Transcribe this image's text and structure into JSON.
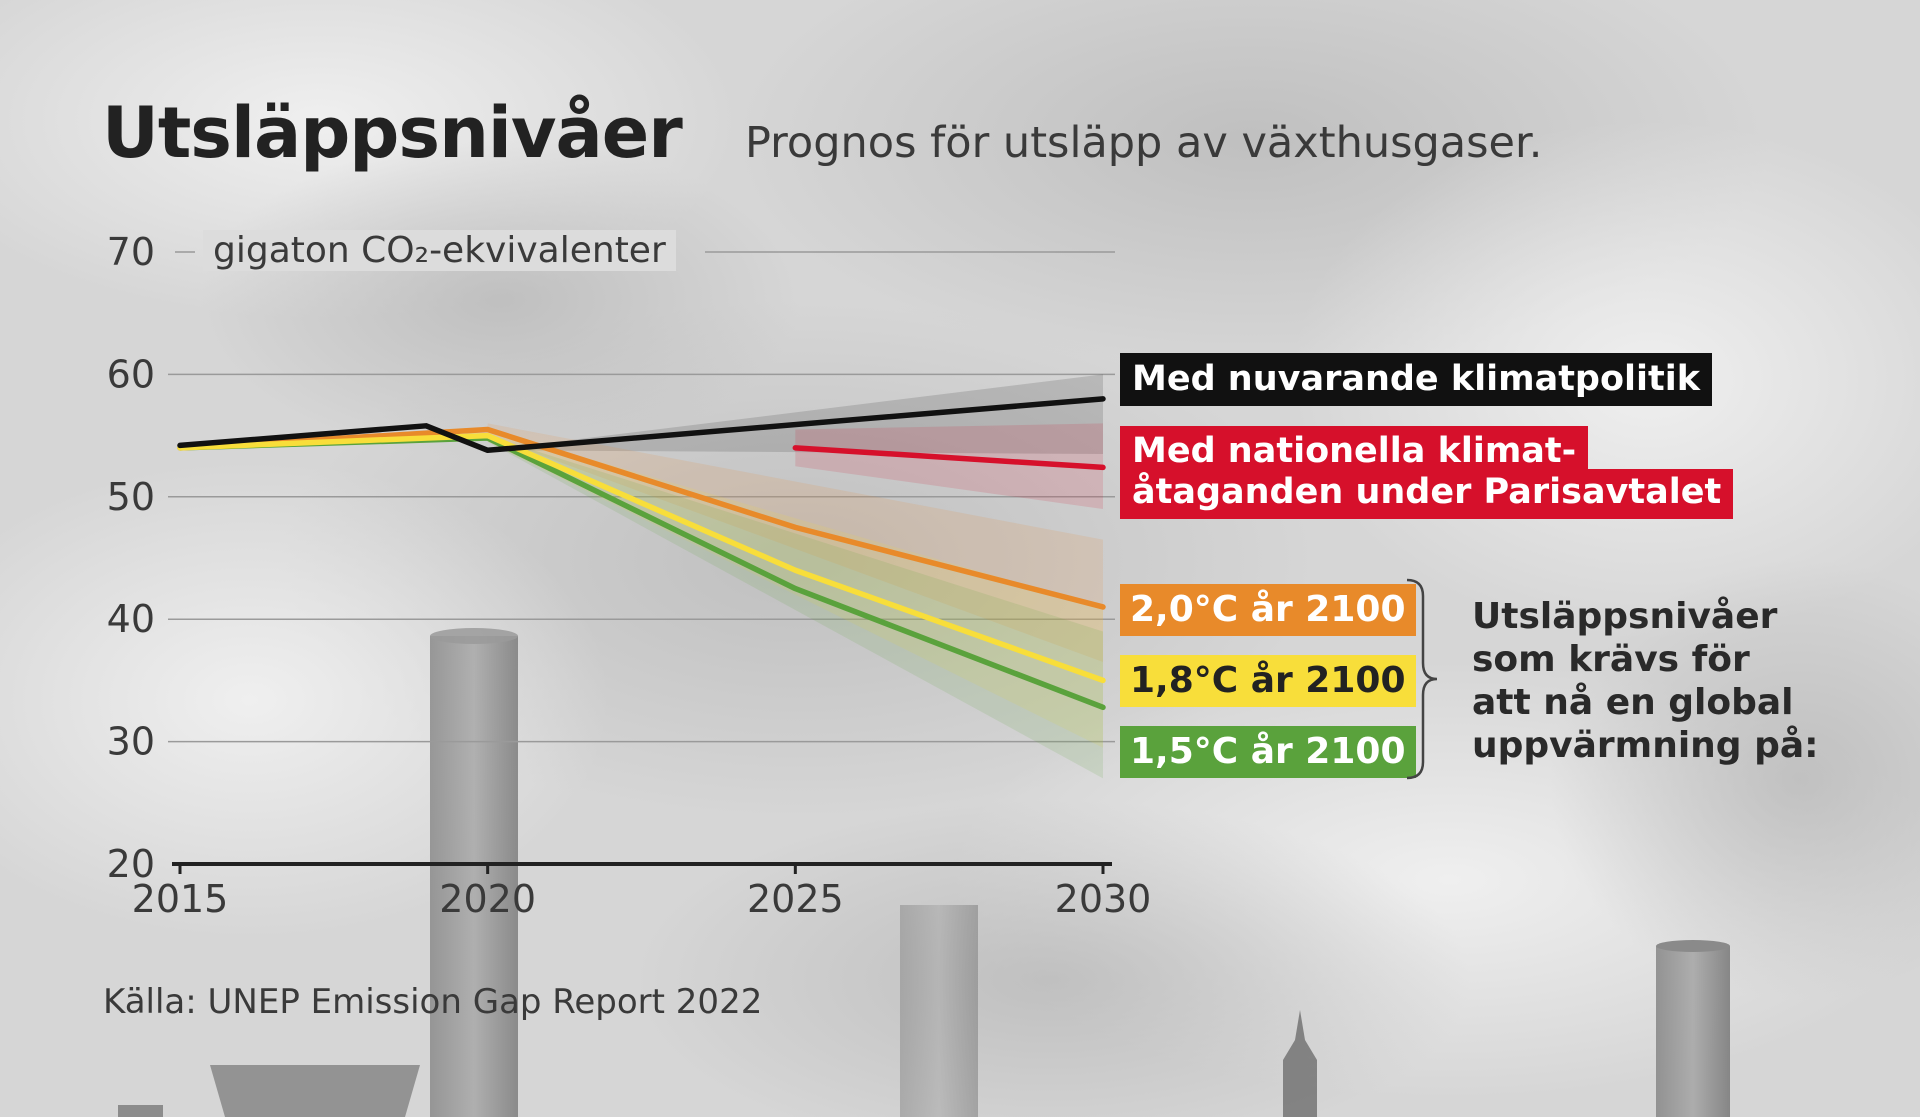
{
  "header": {
    "title": "Utsläppsnivåer",
    "subtitle": "Prognos för utsläpp av växthusgaser."
  },
  "unit_label": "gigaton CO₂-ekvivalenter",
  "source": "Källa: UNEP Emission Gap Report 2022",
  "labels": {
    "current_policy": "Med nuvarande klimatpolitik",
    "ndc_line1": "Med nationella klimat-",
    "ndc_line2": "åtaganden under Parisavtalet",
    "c20": "2,0°C år 2100",
    "c18": "1,8°C år 2100",
    "c15": "1,5°C år 2100"
  },
  "note_lines": [
    "Utsläppsnivåer",
    "som krävs för",
    "att nå en global",
    "uppvärmning på:"
  ],
  "colors": {
    "current_policy": "#111111",
    "ndc": "#d6102b",
    "c20": "#e88a2a",
    "c18": "#f8de3a",
    "c15": "#5aa23c"
  },
  "chart_data": {
    "type": "line",
    "title": "Utsläppsnivåer",
    "subtitle": "Prognos för utsläpp av växthusgaser.",
    "ylabel": "gigaton CO₂-ekvivalenter",
    "xlim": [
      2015,
      2030
    ],
    "ylim": [
      20,
      70
    ],
    "x_ticks": [
      2015,
      2020,
      2025,
      2030
    ],
    "y_ticks": [
      20,
      30,
      40,
      50,
      60,
      70
    ],
    "grid": true,
    "series": [
      {
        "name": "Med nuvarande klimatpolitik",
        "color": "#111111",
        "x": [
          2015,
          2019,
          2020,
          2030
        ],
        "y": [
          54.2,
          55.8,
          53.8,
          58.0
        ],
        "band": {
          "x": [
            2020,
            2030
          ],
          "low": [
            53.8,
            53.5
          ],
          "high": [
            53.8,
            60.0
          ]
        }
      },
      {
        "name": "Med nationella klimatåtaganden under Parisavtalet",
        "color": "#d6102b",
        "x": [
          2025,
          2030
        ],
        "y": [
          54.0,
          52.4
        ],
        "band": {
          "x": [
            2025,
            2030
          ],
          "low": [
            52.5,
            49.0
          ],
          "high": [
            55.5,
            56.0
          ]
        }
      },
      {
        "name": "2,0°C år 2100",
        "color": "#e88a2a",
        "x": [
          2015,
          2020,
          2025,
          2030
        ],
        "y": [
          54.0,
          55.5,
          47.5,
          41.0
        ],
        "band": {
          "x": [
            2020,
            2030
          ],
          "low": [
            55.0,
            36.5
          ],
          "high": [
            56.0,
            46.5
          ]
        }
      },
      {
        "name": "1,8°C år 2100",
        "color": "#f8de3a",
        "x": [
          2015,
          2020,
          2025,
          2030
        ],
        "y": [
          54.0,
          55.0,
          44.0,
          35.0
        ],
        "band": {
          "x": [
            2020,
            2030
          ],
          "low": [
            54.5,
            29.5
          ],
          "high": [
            55.5,
            41.0
          ]
        }
      },
      {
        "name": "1,5°C år 2100",
        "color": "#5aa23c",
        "x": [
          2015,
          2020,
          2025,
          2030
        ],
        "y": [
          54.0,
          54.8,
          42.5,
          32.8
        ],
        "band": {
          "x": [
            2020,
            2030
          ],
          "low": [
            54.5,
            27.0
          ],
          "high": [
            55.0,
            39.0
          ]
        }
      }
    ]
  }
}
